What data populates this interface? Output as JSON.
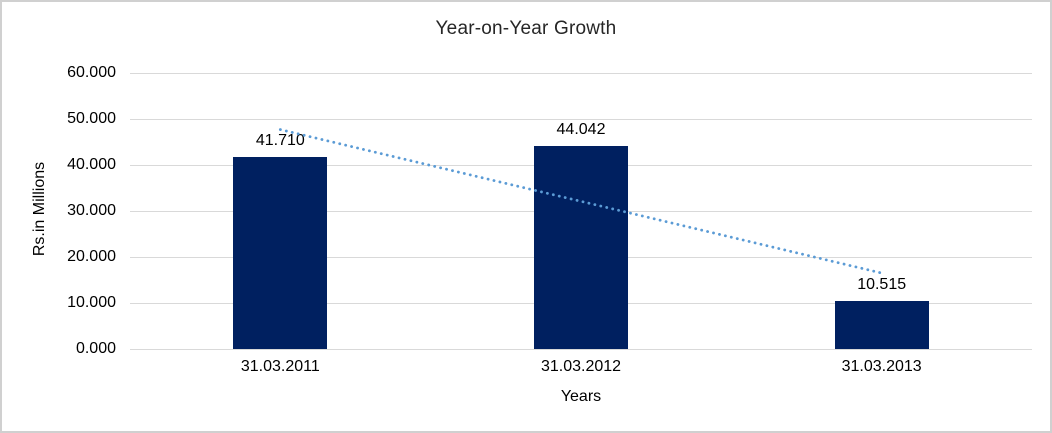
{
  "chart_data": {
    "type": "bar",
    "title": "Year-on-Year Growth",
    "xlabel": "Years",
    "ylabel": "Rs.in Millions",
    "categories": [
      "31.03.2011",
      "31.03.2012",
      "31.03.2013"
    ],
    "values": [
      41.71,
      44.042,
      10.515
    ],
    "data_labels": [
      "41.710",
      "44.042",
      "10.515"
    ],
    "ylim": [
      0,
      60
    ],
    "ytick_step": 10,
    "ytick_labels": [
      "0.000",
      "10.000",
      "20.000",
      "30.000",
      "40.000",
      "50.000",
      "60.000"
    ],
    "grid": true,
    "legend": "none",
    "trendline": {
      "kind": "linear-dotted",
      "start_value": 47.7,
      "end_value": 16.5
    }
  },
  "colors": {
    "bar": "#002060",
    "trendline": "#5b9bd5",
    "gridline": "#d9d9d9",
    "title_text": "#262626",
    "axis_text": "#000000",
    "background": "#ffffff",
    "border": "#d0d0d0"
  }
}
